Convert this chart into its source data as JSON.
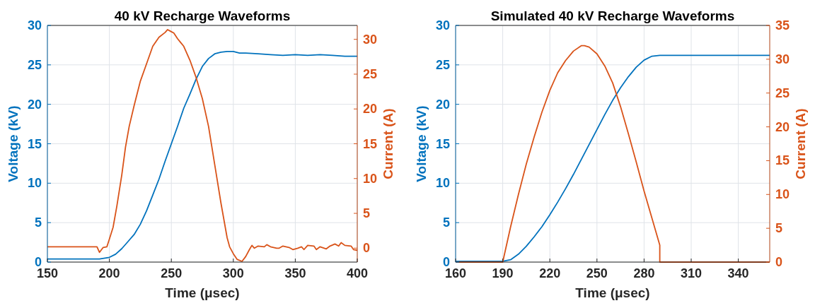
{
  "chart_data": [
    {
      "type": "line",
      "title": "40 kV Recharge Waveforms",
      "xlabel": "Time (μsec)",
      "ylabel": "Voltage (kV)",
      "y2label": "Current (A)",
      "xlim": [
        150,
        400
      ],
      "xticks": [
        150,
        200,
        250,
        300,
        350,
        400
      ],
      "ylim": [
        0,
        30
      ],
      "yticks": [
        0,
        5,
        10,
        15,
        20,
        25,
        30
      ],
      "y2lim": [
        -2,
        32
      ],
      "y2ticks": [
        0,
        5,
        10,
        15,
        20,
        25,
        30
      ],
      "grid": true,
      "line_style": "solid",
      "series": [
        {
          "color": "#0072bd",
          "axis": "y",
          "x": [
            150,
            170,
            192,
            200,
            205,
            210,
            215,
            220,
            225,
            230,
            235,
            240,
            245,
            250,
            255,
            260,
            265,
            270,
            275,
            280,
            285,
            290,
            295,
            300,
            305,
            310,
            320,
            330,
            340,
            350,
            360,
            370,
            380,
            390,
            400
          ],
          "values": [
            0.4,
            0.4,
            0.4,
            0.6,
            1.0,
            1.7,
            2.6,
            3.5,
            4.8,
            6.5,
            8.5,
            10.5,
            12.8,
            15,
            17.2,
            19.5,
            21.3,
            23.2,
            24.8,
            25.8,
            26.4,
            26.6,
            26.7,
            26.7,
            26.5,
            26.5,
            26.4,
            26.3,
            26.2,
            26.3,
            26.2,
            26.3,
            26.2,
            26.1,
            26.1
          ]
        },
        {
          "color": "#d95319",
          "axis": "y2",
          "x": [
            150,
            170,
            190,
            192,
            195,
            198,
            200,
            203,
            206,
            210,
            213,
            216,
            220,
            225,
            230,
            235,
            240,
            245,
            247,
            250,
            252,
            255,
            260,
            265,
            270,
            275,
            280,
            285,
            290,
            295,
            297,
            300,
            303,
            307,
            310,
            313,
            315,
            317,
            320,
            325,
            327,
            330,
            335,
            337,
            340,
            345,
            348,
            352,
            355,
            357,
            360,
            365,
            367,
            370,
            375,
            378,
            382,
            385,
            387,
            390,
            395,
            397,
            400
          ],
          "values": [
            0.2,
            0.2,
            0.2,
            -0.6,
            0.1,
            0.2,
            1.3,
            3,
            6,
            10.5,
            14.5,
            17.5,
            20.5,
            24,
            26.5,
            29,
            30.3,
            31,
            31.4,
            31.1,
            30.9,
            30.1,
            29,
            27,
            24.5,
            21.5,
            17.5,
            12,
            6.5,
            1.5,
            0.2,
            -0.8,
            -1.6,
            -1.9,
            -1.2,
            -0.2,
            0.4,
            0,
            0.3,
            0.2,
            0.5,
            0.2,
            0,
            0,
            0.3,
            0.1,
            -0.2,
            0,
            0.2,
            -0.2,
            0.4,
            0.3,
            -0.2,
            0.2,
            -0.1,
            0.3,
            0.6,
            0.3,
            0.8,
            0.4,
            0.3,
            -0.2,
            -0.3
          ]
        }
      ]
    },
    {
      "type": "line",
      "title": "Simulated 40 kV Recharge Waveforms",
      "xlabel": "Time (μsec)",
      "ylabel": "Voltage (kV)",
      "y2label": "Current (A)",
      "xlim": [
        160,
        360
      ],
      "xticks": [
        160,
        190,
        220,
        250,
        280,
        310,
        340
      ],
      "ylim": [
        0,
        30
      ],
      "yticks": [
        0,
        5,
        10,
        15,
        20,
        25,
        30
      ],
      "y2lim": [
        0,
        35
      ],
      "y2ticks": [
        0,
        5,
        10,
        15,
        20,
        25,
        30,
        35
      ],
      "grid": true,
      "line_style": "solid",
      "series": [
        {
          "color": "#0072bd",
          "axis": "y",
          "x": [
            160,
            190,
            195,
            200,
            205,
            210,
            215,
            220,
            225,
            230,
            235,
            240,
            245,
            250,
            255,
            260,
            265,
            270,
            275,
            280,
            285,
            290,
            360
          ],
          "values": [
            0.1,
            0.1,
            0.3,
            1,
            2,
            3.2,
            4.5,
            6,
            7.6,
            9.3,
            11.1,
            13,
            14.9,
            16.8,
            18.7,
            20.5,
            22.1,
            23.5,
            24.7,
            25.6,
            26.1,
            26.2,
            26.2
          ]
        },
        {
          "color": "#d95319",
          "axis": "y2",
          "x": [
            160,
            190,
            195,
            200,
            205,
            210,
            215,
            220,
            225,
            230,
            235,
            240,
            242,
            245,
            250,
            255,
            260,
            265,
            270,
            275,
            280,
            285,
            290,
            290,
            360
          ],
          "values": [
            0,
            0,
            5.2,
            10,
            14.5,
            18.5,
            22.2,
            25.4,
            28,
            29.8,
            31.2,
            32,
            32,
            31.8,
            30.8,
            29,
            26.5,
            23,
            19,
            14.8,
            10.5,
            6.5,
            2.5,
            0,
            0
          ]
        }
      ]
    }
  ]
}
